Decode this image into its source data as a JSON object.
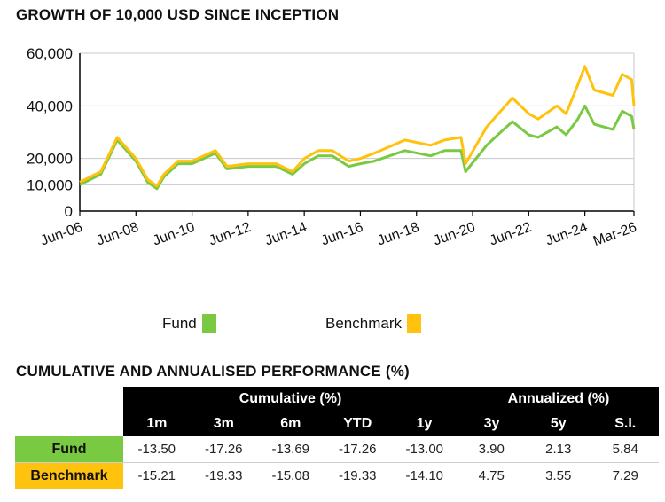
{
  "chart_title": "GROWTH OF 10,000 USD SINCE INCEPTION",
  "table_title": "CUMULATIVE AND ANNUALISED PERFORMANCE (%)",
  "colors": {
    "fund": "#7ac943",
    "benchmark": "#ffc20e",
    "grid": "#c8c8c8",
    "axis": "#000000"
  },
  "chart_data": {
    "type": "line",
    "x_ticks": [
      "Jun-06",
      "Jun-08",
      "Jun-10",
      "Jun-12",
      "Jun-14",
      "Jun-16",
      "Jun-18",
      "Jun-20",
      "Jun-22",
      "Jun-24",
      "Mar-26"
    ],
    "y_ticks": [
      "60,000",
      "40,000",
      "20,000",
      "10,000",
      "0"
    ],
    "y_tick_values": [
      60000,
      40000,
      20000,
      10000,
      0
    ],
    "ylim": [
      0,
      60000
    ],
    "xlim": [
      "Jun-06",
      "Mar-26"
    ],
    "grid": true,
    "legend_position": "bottom",
    "series": [
      {
        "name": "Fund",
        "color": "#7ac943",
        "x": [
          "Jun-06",
          "Mar-07",
          "Oct-07",
          "Jun-08",
          "Nov-08",
          "Mar-09",
          "Jun-09",
          "Dec-09",
          "Jun-10",
          "Apr-11",
          "Sep-11",
          "Jun-12",
          "Jun-13",
          "Jan-14",
          "Jun-14",
          "Dec-14",
          "Jun-15",
          "Jan-16",
          "Jun-16",
          "Dec-16",
          "Jan-18",
          "Dec-18",
          "Jun-19",
          "Jan-20",
          "Mar-20",
          "Dec-20",
          "Jun-21",
          "Nov-21",
          "Jun-22",
          "Oct-22",
          "Jun-23",
          "Oct-23",
          "Mar-24",
          "Jun-24",
          "Oct-24",
          "Jun-25",
          "Oct-25",
          "Feb-26",
          "Mar-26"
        ],
        "values": [
          10000,
          14000,
          27000,
          19000,
          11000,
          8500,
          13000,
          18000,
          18000,
          22000,
          16000,
          17000,
          17000,
          14000,
          18000,
          21000,
          21000,
          17000,
          18000,
          19000,
          23000,
          21000,
          23000,
          23000,
          15000,
          25000,
          30000,
          34000,
          29000,
          28000,
          32000,
          29000,
          35000,
          40000,
          33000,
          31000,
          38000,
          36000,
          31000
        ]
      },
      {
        "name": "Benchmark",
        "color": "#ffc20e",
        "x": [
          "Jun-06",
          "Mar-07",
          "Oct-07",
          "Jun-08",
          "Nov-08",
          "Mar-09",
          "Jun-09",
          "Dec-09",
          "Jun-10",
          "Apr-11",
          "Sep-11",
          "Jun-12",
          "Jun-13",
          "Jan-14",
          "Jun-14",
          "Dec-14",
          "Jun-15",
          "Jan-16",
          "Jun-16",
          "Dec-16",
          "Jan-18",
          "Dec-18",
          "Jun-19",
          "Jan-20",
          "Mar-20",
          "Dec-20",
          "Jun-21",
          "Nov-21",
          "Jun-22",
          "Oct-22",
          "Jun-23",
          "Oct-23",
          "Mar-24",
          "Jun-24",
          "Oct-24",
          "Jun-25",
          "Oct-25",
          "Feb-26",
          "Mar-26"
        ],
        "values": [
          11000,
          15000,
          28000,
          20000,
          12000,
          9500,
          14000,
          19000,
          19000,
          23000,
          17000,
          18000,
          18000,
          15000,
          20000,
          23000,
          23000,
          19000,
          20000,
          22000,
          27000,
          25000,
          27000,
          28000,
          18000,
          32000,
          38000,
          43000,
          37000,
          35000,
          40000,
          37000,
          48000,
          55000,
          46000,
          44000,
          52000,
          50000,
          40000
        ]
      }
    ]
  },
  "legend": [
    {
      "label": "Fund",
      "color": "#7ac943"
    },
    {
      "label": "Benchmark",
      "color": "#ffc20e"
    }
  ],
  "table": {
    "group_cumulative": "Cumulative (%)",
    "group_annualized": "Annualized (%)",
    "columns": [
      "1m",
      "3m",
      "6m",
      "YTD",
      "1y",
      "3y",
      "5y",
      "S.I."
    ],
    "rows": [
      {
        "label": "Fund",
        "color": "#7ac943",
        "values": [
          "-13.50",
          "-17.26",
          "-13.69",
          "-17.26",
          "-13.00",
          "3.90",
          "2.13",
          "5.84"
        ]
      },
      {
        "label": "Benchmark",
        "color": "#ffc20e",
        "values": [
          "-15.21",
          "-19.33",
          "-15.08",
          "-19.33",
          "-14.10",
          "4.75",
          "3.55",
          "7.29"
        ]
      }
    ]
  }
}
